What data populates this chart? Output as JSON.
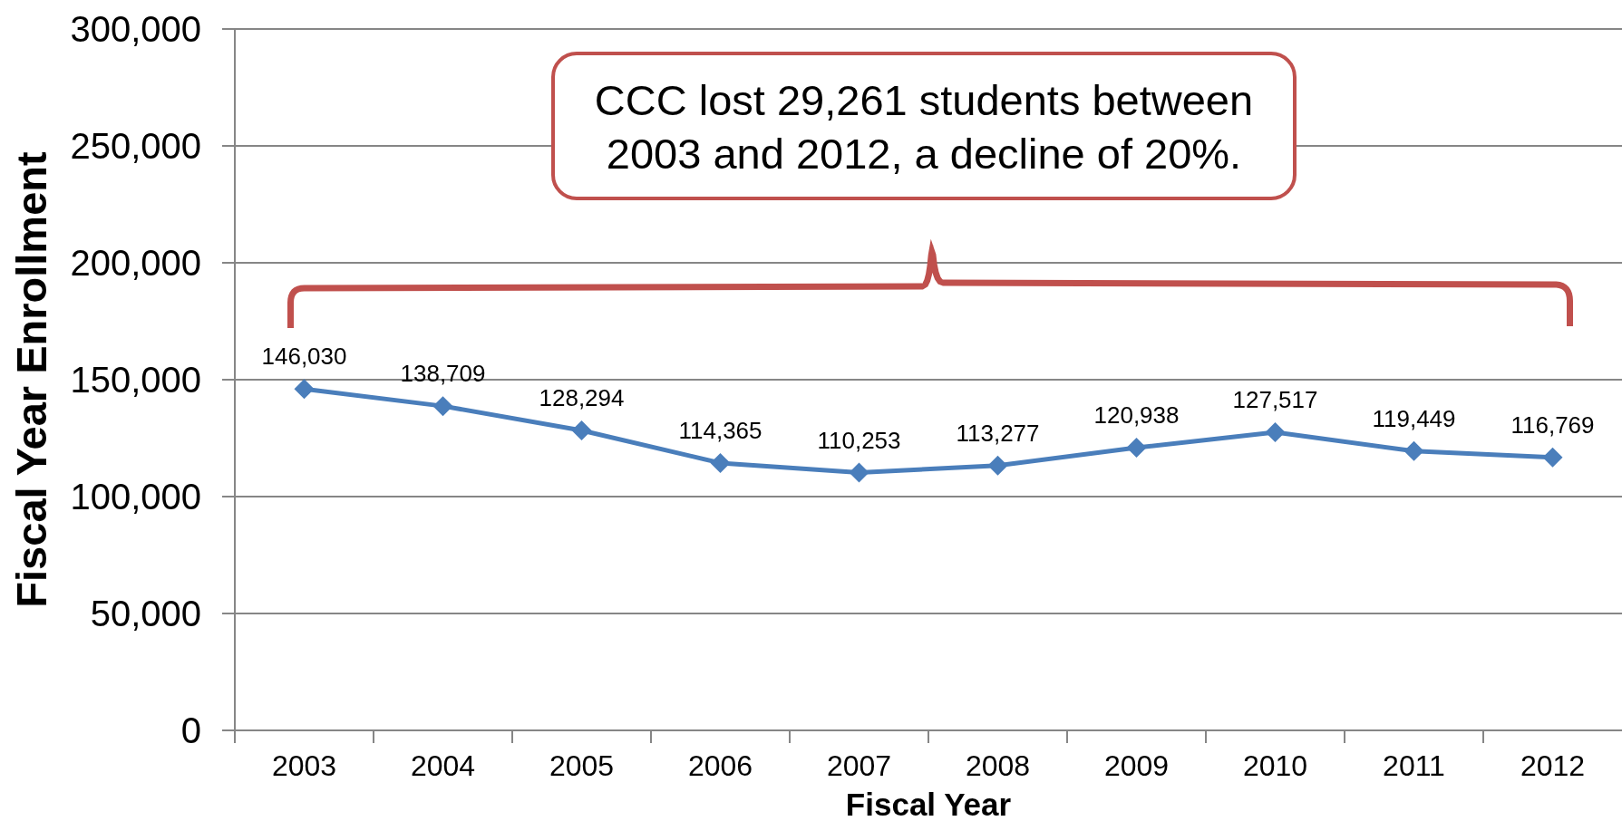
{
  "chart_data": {
    "type": "line",
    "xlabel": "Fiscal Year",
    "ylabel": "Fiscal Year Enrollment",
    "categories": [
      "2003",
      "2004",
      "2005",
      "2006",
      "2007",
      "2008",
      "2009",
      "2010",
      "2011",
      "2012"
    ],
    "series": [
      {
        "color": "#4a7ebb",
        "values": [
          146030,
          138709,
          128294,
          114365,
          110253,
          113277,
          120938,
          127517,
          119449,
          116769
        ],
        "value_labels": [
          "146,030",
          "138,709",
          "128,294",
          "114,365",
          "110,253",
          "113,277",
          "120,938",
          "127,517",
          "119,449",
          "116,769"
        ]
      }
    ],
    "ylim": [
      0,
      300000
    ],
    "yticks": [
      0,
      {
        "value": 50000,
        "label": "50,000"
      },
      {
        "value": 100000,
        "label": "100,000"
      },
      {
        "value": 150000,
        "label": "150,000"
      },
      {
        "value": 200000,
        "label": "200,000"
      },
      {
        "value": 250000,
        "label": "250,000"
      },
      {
        "value": 300000,
        "label": "300,000"
      }
    ],
    "grid": "y",
    "marker": "diamond",
    "line_style": "solid",
    "annotations": [
      "CCC lost 29,261 students between 2003 and 2012, a decline of 20%."
    ]
  }
}
